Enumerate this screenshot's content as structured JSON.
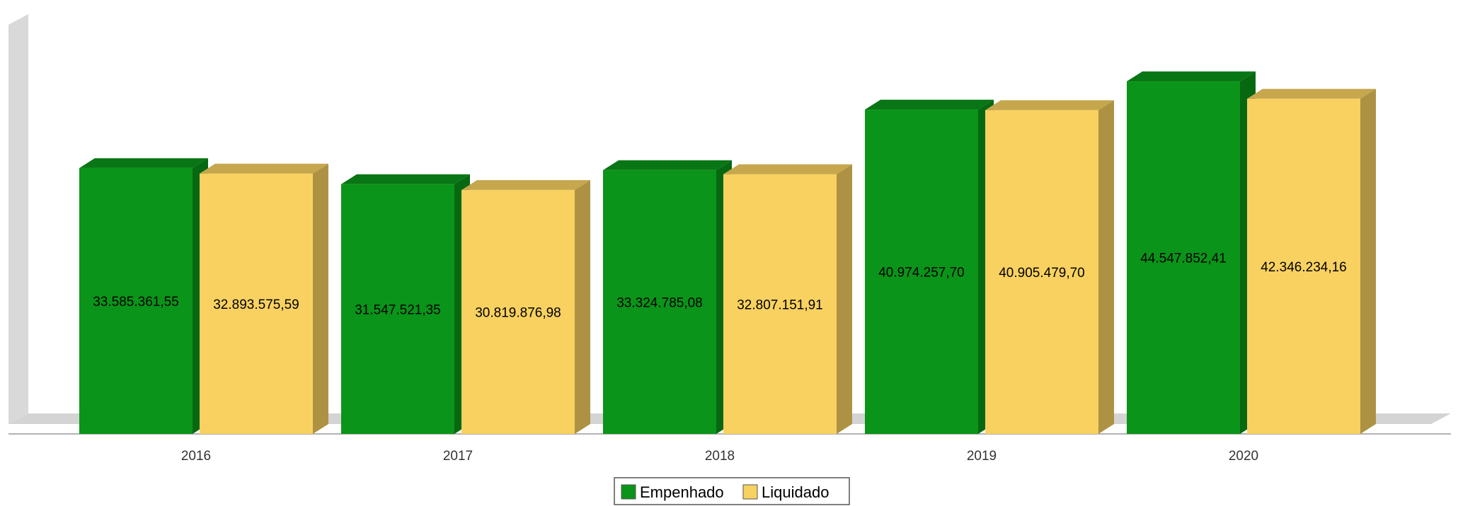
{
  "chart_data": {
    "type": "bar",
    "title": "",
    "xlabel": "",
    "ylabel": "",
    "categories": [
      "2016",
      "2017",
      "2018",
      "2019",
      "2020"
    ],
    "series": [
      {
        "name": "Empenhado",
        "color": "#0a9419",
        "values": [
          33585361.55,
          31547521.35,
          33324785.08,
          40974257.7,
          44547852.41
        ],
        "labels": [
          "33.585.361,55",
          "31.547.521,35",
          "33.324.785,08",
          "40.974.257,70",
          "44.547.852,41"
        ]
      },
      {
        "name": "Liquidado",
        "color": "#f8d160",
        "values": [
          32893575.59,
          30819876.98,
          32807151.91,
          40905479.7,
          42346234.16
        ],
        "labels": [
          "32.893.575,59",
          "30.819.876,98",
          "32.807.151,91",
          "40.905.479,70",
          "42.346.234,16"
        ]
      }
    ],
    "ylim": [
      0,
      50000000
    ],
    "grid": false,
    "legend": "bottom-center",
    "three_d": true
  }
}
